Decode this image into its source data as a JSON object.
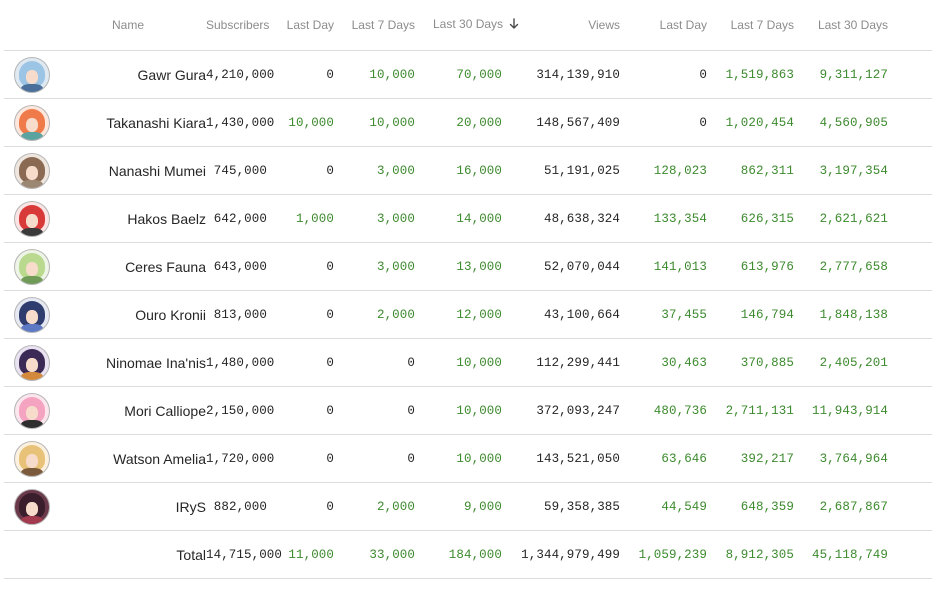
{
  "columns": {
    "name": "Name",
    "subscribers": "Subscribers",
    "sub_last_day": "Last Day",
    "sub_last_7": "Last 7 Days",
    "sub_last_30": "Last 30 Days",
    "views": "Views",
    "views_last_day": "Last Day",
    "views_last_7": "Last 7 Days",
    "views_last_30": "Last 30 Days"
  },
  "sort": {
    "column": "sub_last_30",
    "direction": "descending",
    "icon": "arrow-down-icon"
  },
  "colors": {
    "positive": "#3c8a2e",
    "text": "#262626",
    "header": "#8c8c8c",
    "divider": "#dcdcdc"
  },
  "rows": [
    {
      "name": "Gawr Gura",
      "avatar_colors": [
        "#dfe9f2",
        "#9cc4e4",
        "#4a6f9a"
      ],
      "subscribers": "4,210,000",
      "sub_last_day": "0",
      "sub_last_7": "10,000",
      "sub_last_30": "70,000",
      "views": "314,139,910",
      "views_last_day": "0",
      "views_last_7": "1,519,863",
      "views_last_30": "9,311,127"
    },
    {
      "name": "Takanashi Kiara",
      "avatar_colors": [
        "#fde7dc",
        "#f07b4a",
        "#5aa3a0"
      ],
      "subscribers": "1,430,000",
      "sub_last_day": "10,000",
      "sub_last_7": "10,000",
      "sub_last_30": "20,000",
      "views": "148,567,409",
      "views_last_day": "0",
      "views_last_7": "1,020,454",
      "views_last_30": "4,560,905"
    },
    {
      "name": "Nanashi Mumei",
      "avatar_colors": [
        "#efe7df",
        "#8a6a52",
        "#9c8772"
      ],
      "subscribers": "745,000",
      "sub_last_day": "0",
      "sub_last_7": "3,000",
      "sub_last_30": "16,000",
      "views": "51,191,025",
      "views_last_day": "128,023",
      "views_last_7": "862,311",
      "views_last_30": "3,197,354"
    },
    {
      "name": "Hakos Baelz",
      "avatar_colors": [
        "#fbe4e4",
        "#d83a3a",
        "#3a3a3a"
      ],
      "subscribers": "642,000",
      "sub_last_day": "1,000",
      "sub_last_7": "3,000",
      "sub_last_30": "14,000",
      "views": "48,638,324",
      "views_last_day": "133,354",
      "views_last_7": "626,315",
      "views_last_30": "2,621,621"
    },
    {
      "name": "Ceres Fauna",
      "avatar_colors": [
        "#eef4e6",
        "#b9d98f",
        "#6f9a58"
      ],
      "subscribers": "643,000",
      "sub_last_day": "0",
      "sub_last_7": "3,000",
      "sub_last_30": "13,000",
      "views": "52,070,044",
      "views_last_day": "141,013",
      "views_last_7": "613,976",
      "views_last_30": "2,777,658"
    },
    {
      "name": "Ouro Kronii",
      "avatar_colors": [
        "#e6e8f2",
        "#2f3c6e",
        "#5d79c4"
      ],
      "subscribers": "813,000",
      "sub_last_day": "0",
      "sub_last_7": "2,000",
      "sub_last_30": "12,000",
      "views": "43,100,664",
      "views_last_day": "37,455",
      "views_last_7": "146,794",
      "views_last_30": "1,848,138"
    },
    {
      "name": "Ninomae Ina'nis",
      "avatar_colors": [
        "#e9e2f0",
        "#3b2a55",
        "#d48a3c"
      ],
      "subscribers": "1,480,000",
      "sub_last_day": "0",
      "sub_last_7": "0",
      "sub_last_30": "10,000",
      "views": "112,299,441",
      "views_last_day": "30,463",
      "views_last_7": "370,885",
      "views_last_30": "2,405,201"
    },
    {
      "name": "Mori Calliope",
      "avatar_colors": [
        "#fbe6ee",
        "#f4a3c0",
        "#2e2e2e"
      ],
      "subscribers": "2,150,000",
      "sub_last_day": "0",
      "sub_last_7": "0",
      "sub_last_30": "10,000",
      "views": "372,093,247",
      "views_last_day": "480,736",
      "views_last_7": "2,711,131",
      "views_last_30": "11,943,914"
    },
    {
      "name": "Watson Amelia",
      "avatar_colors": [
        "#fbf1de",
        "#e9c27a",
        "#7a5a3a"
      ],
      "subscribers": "1,720,000",
      "sub_last_day": "0",
      "sub_last_7": "0",
      "sub_last_30": "10,000",
      "views": "143,521,050",
      "views_last_day": "63,646",
      "views_last_7": "392,217",
      "views_last_30": "3,764,964"
    },
    {
      "name": "IRyS",
      "avatar_colors": [
        "#6a3a4a",
        "#3a1e2c",
        "#a33a4e"
      ],
      "subscribers": "882,000",
      "sub_last_day": "0",
      "sub_last_7": "2,000",
      "sub_last_30": "9,000",
      "views": "59,358,385",
      "views_last_day": "44,549",
      "views_last_7": "648,359",
      "views_last_30": "2,687,867"
    }
  ],
  "total": {
    "label": "Total",
    "subscribers": "14,715,000",
    "sub_last_day": "11,000",
    "sub_last_7": "33,000",
    "sub_last_30": "184,000",
    "views": "1,344,979,499",
    "views_last_day": "1,059,239",
    "views_last_7": "8,912,305",
    "views_last_30": "45,118,749"
  }
}
